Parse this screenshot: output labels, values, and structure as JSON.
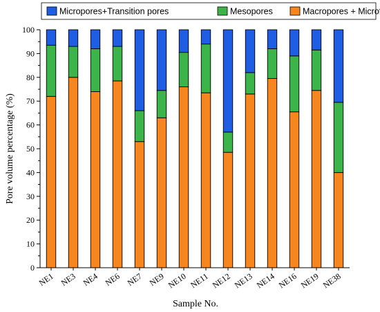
{
  "chart_data": {
    "type": "bar",
    "stacked": true,
    "categories": [
      "NE1",
      "NE3",
      "NE4",
      "NE6",
      "NE7",
      "NE9",
      "NE10",
      "NE11",
      "NE12",
      "NE13",
      "NE14",
      "NE16",
      "NE19",
      "NE38"
    ],
    "series": [
      {
        "name": "Macropores + Microfractures",
        "color": "#f7861e",
        "values": [
          72,
          80,
          74,
          78.5,
          53,
          63,
          76,
          73.5,
          48.5,
          73,
          79.5,
          65.5,
          74.5,
          40
        ]
      },
      {
        "name": "Mesopores",
        "color": "#3cb44a",
        "values": [
          21.5,
          13,
          18,
          14.5,
          13,
          11.5,
          14.5,
          20.5,
          8.5,
          9,
          12.5,
          23.5,
          17,
          29.5
        ]
      },
      {
        "name": "Micropores+Transition pores",
        "color": "#1f5ee3",
        "values": [
          6.5,
          7,
          8,
          7,
          34,
          25.5,
          9.5,
          6,
          43,
          18,
          8,
          11,
          8.5,
          30.5
        ]
      }
    ],
    "legend_order": [
      "Micropores+Transition pores",
      "Mesopores",
      "Macropores + Microfractures"
    ],
    "legend_position": "top",
    "xlabel": "Sample No.",
    "ylabel": "Pore volume percentage (%)",
    "ylim": [
      0,
      100
    ],
    "yticks": [
      "0",
      "10",
      "20",
      "30",
      "40",
      "50",
      "60",
      "70",
      "80",
      "90",
      "100"
    ],
    "grid": false
  }
}
